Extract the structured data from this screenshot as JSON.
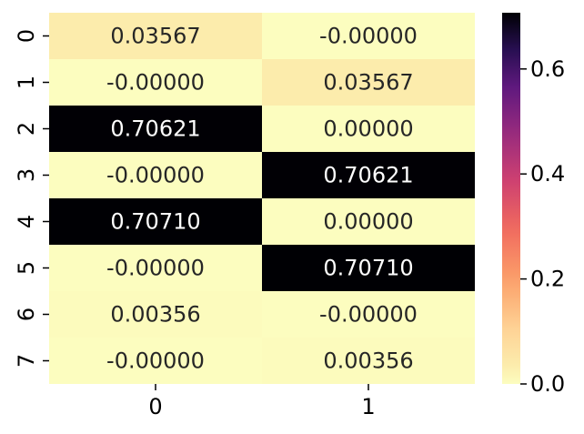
{
  "chart_data": {
    "type": "heatmap",
    "title": "",
    "xlabel": "",
    "ylabel": "",
    "x_categories": [
      "0",
      "1"
    ],
    "y_categories": [
      "0",
      "1",
      "2",
      "3",
      "4",
      "5",
      "6",
      "7"
    ],
    "values": [
      [
        0.03567,
        -0.0
      ],
      [
        -0.0,
        0.03567
      ],
      [
        0.70621,
        0.0
      ],
      [
        -0.0,
        0.70621
      ],
      [
        0.7071,
        0.0
      ],
      [
        -0.0,
        0.7071
      ],
      [
        0.00356,
        -0.0
      ],
      [
        -0.0,
        0.00356
      ]
    ],
    "cell_labels": [
      [
        "0.03567",
        "-0.00000"
      ],
      [
        "-0.00000",
        "0.03567"
      ],
      [
        "0.70621",
        "0.00000"
      ],
      [
        "-0.00000",
        "0.70621"
      ],
      [
        "0.70710",
        "0.00000"
      ],
      [
        "-0.00000",
        "0.70710"
      ],
      [
        "0.00356",
        "-0.00000"
      ],
      [
        "-0.00000",
        "0.00356"
      ]
    ],
    "colorbar": {
      "colormap": "magma_r",
      "range": [
        0.0,
        0.7071
      ],
      "ticks": [
        0.0,
        0.2,
        0.4,
        0.6
      ],
      "tick_labels": [
        "0.0",
        "0.2",
        "0.4",
        "0.6"
      ]
    }
  }
}
